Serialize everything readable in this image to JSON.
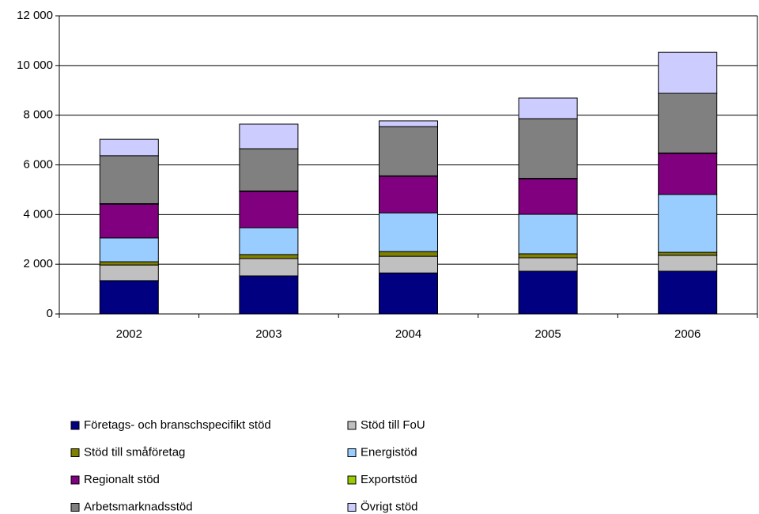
{
  "chart_data": {
    "type": "stacked-bar",
    "categories": [
      "2002",
      "2003",
      "2004",
      "2005",
      "2006"
    ],
    "series": [
      {
        "name": "Företags- och branschspecifikt stöd",
        "color": "#000080",
        "values": [
          1340,
          1530,
          1650,
          1720,
          1720
        ]
      },
      {
        "name": "Stöd till FoU",
        "color": "#c0c0c0",
        "values": [
          630,
          700,
          670,
          540,
          640
        ]
      },
      {
        "name": "Stöd till småföretag",
        "color": "#808000",
        "values": [
          130,
          160,
          190,
          160,
          120
        ]
      },
      {
        "name": "Energistöd",
        "color": "#99ccff",
        "values": [
          960,
          1080,
          1560,
          1590,
          2330
        ]
      },
      {
        "name": "Regionalt stöd",
        "color": "#800080",
        "values": [
          1360,
          1460,
          1470,
          1430,
          1650
        ]
      },
      {
        "name": "Exportstöd",
        "color": "#99cc00",
        "values": [
          20,
          20,
          20,
          20,
          20
        ]
      },
      {
        "name": "Arbetsmarknadsstöd",
        "color": "#808080",
        "values": [
          1930,
          1700,
          1980,
          2400,
          2400
        ]
      },
      {
        "name": "Övrigt stöd",
        "color": "#ccccff",
        "values": [
          660,
          990,
          230,
          830,
          1650
        ]
      }
    ],
    "ylim": [
      0,
      12000
    ],
    "yticks": [
      0,
      {
        "value": 2000,
        "label": "2 000"
      },
      {
        "value": 4000,
        "label": "4 000"
      },
      {
        "value": 6000,
        "label": "6 000"
      },
      {
        "value": 8000,
        "label": "8 000"
      },
      {
        "value": 10000,
        "label": "10 000"
      },
      {
        "value": 12000,
        "label": "12 000"
      }
    ],
    "grid": true
  }
}
